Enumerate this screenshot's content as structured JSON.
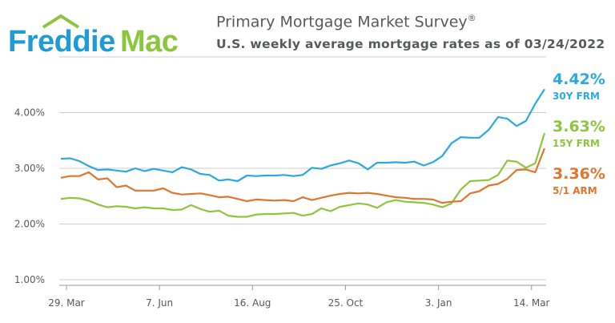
{
  "header": {
    "brand": "Freddie Mac",
    "title": "Primary Mortgage Market Survey",
    "registered": "®",
    "subtitle": "U.S. weekly average mortgage rates as of 03/24/2022"
  },
  "colors": {
    "frm30": "#29a9e0",
    "frm15": "#8cc63f",
    "arm51": "#e0762e",
    "brand_blue": "#1f9bd7",
    "brand_green": "#8cc63f",
    "grid": "#cccccc",
    "axis": "#999999"
  },
  "chart_data": {
    "type": "line",
    "title": "Primary Mortgage Market Survey",
    "subtitle": "U.S. weekly average mortgage rates as of 03/24/2022",
    "xlabel": "",
    "ylabel": "",
    "ylim": [
      1.0,
      5.0
    ],
    "y_ticks": [
      "1.00%",
      "2.00%",
      "3.00%",
      "4.00%"
    ],
    "x_ticks": [
      "29. Mar",
      "7. Jun",
      "16. Aug",
      "25. Oct",
      "3. Jan",
      "14. Mar"
    ],
    "x": [
      "2021-03-25",
      "2021-04-01",
      "2021-04-08",
      "2021-04-15",
      "2021-04-22",
      "2021-04-29",
      "2021-05-06",
      "2021-05-13",
      "2021-05-20",
      "2021-05-27",
      "2021-06-03",
      "2021-06-10",
      "2021-06-17",
      "2021-06-24",
      "2021-07-01",
      "2021-07-08",
      "2021-07-15",
      "2021-07-22",
      "2021-07-29",
      "2021-08-05",
      "2021-08-12",
      "2021-08-19",
      "2021-08-26",
      "2021-09-02",
      "2021-09-09",
      "2021-09-16",
      "2021-09-23",
      "2021-09-30",
      "2021-10-07",
      "2021-10-14",
      "2021-10-21",
      "2021-10-28",
      "2021-11-04",
      "2021-11-10",
      "2021-11-18",
      "2021-11-24",
      "2021-12-02",
      "2021-12-09",
      "2021-12-16",
      "2021-12-23",
      "2021-12-30",
      "2022-01-06",
      "2022-01-13",
      "2022-01-20",
      "2022-01-27",
      "2022-02-03",
      "2022-02-10",
      "2022-02-17",
      "2022-02-24",
      "2022-03-03",
      "2022-03-10",
      "2022-03-17",
      "2022-03-24"
    ],
    "grid": true,
    "legend": "end-labels",
    "series": [
      {
        "name": "30Y FRM",
        "key": "frm30",
        "end_label": "4.42%",
        "values": [
          3.17,
          3.18,
          3.13,
          3.04,
          2.97,
          2.98,
          2.96,
          2.94,
          3.0,
          2.95,
          2.99,
          2.96,
          2.93,
          3.02,
          2.98,
          2.9,
          2.88,
          2.78,
          2.8,
          2.77,
          2.87,
          2.86,
          2.87,
          2.87,
          2.88,
          2.86,
          2.88,
          3.01,
          2.99,
          3.05,
          3.09,
          3.14,
          3.09,
          2.98,
          3.1,
          3.1,
          3.11,
          3.1,
          3.12,
          3.05,
          3.11,
          3.22,
          3.45,
          3.56,
          3.55,
          3.55,
          3.69,
          3.92,
          3.89,
          3.76,
          3.85,
          4.16,
          4.42
        ]
      },
      {
        "name": "15Y FRM",
        "key": "frm15",
        "end_label": "3.63%",
        "values": [
          2.45,
          2.47,
          2.46,
          2.42,
          2.35,
          2.3,
          2.32,
          2.31,
          2.28,
          2.3,
          2.28,
          2.28,
          2.25,
          2.26,
          2.34,
          2.27,
          2.22,
          2.24,
          2.15,
          2.13,
          2.13,
          2.17,
          2.18,
          2.18,
          2.19,
          2.2,
          2.15,
          2.18,
          2.28,
          2.23,
          2.31,
          2.34,
          2.37,
          2.35,
          2.29,
          2.39,
          2.43,
          2.4,
          2.39,
          2.38,
          2.35,
          2.3,
          2.37,
          2.62,
          2.77,
          2.78,
          2.79,
          2.88,
          3.14,
          3.12,
          3.01,
          3.09,
          3.63
        ]
      },
      {
        "name": "5/1 ARM",
        "key": "arm51",
        "end_label": "3.36%",
        "values": [
          2.83,
          2.86,
          2.86,
          2.93,
          2.8,
          2.82,
          2.66,
          2.69,
          2.6,
          2.6,
          2.6,
          2.64,
          2.56,
          2.53,
          2.54,
          2.55,
          2.52,
          2.48,
          2.49,
          2.45,
          2.41,
          2.44,
          2.43,
          2.42,
          2.43,
          2.41,
          2.48,
          2.43,
          2.47,
          2.51,
          2.54,
          2.56,
          2.55,
          2.56,
          2.54,
          2.51,
          2.48,
          2.47,
          2.45,
          2.45,
          2.44,
          2.38,
          2.4,
          2.41,
          2.55,
          2.59,
          2.69,
          2.72,
          2.81,
          2.97,
          2.98,
          2.93,
          3.36
        ]
      }
    ]
  }
}
